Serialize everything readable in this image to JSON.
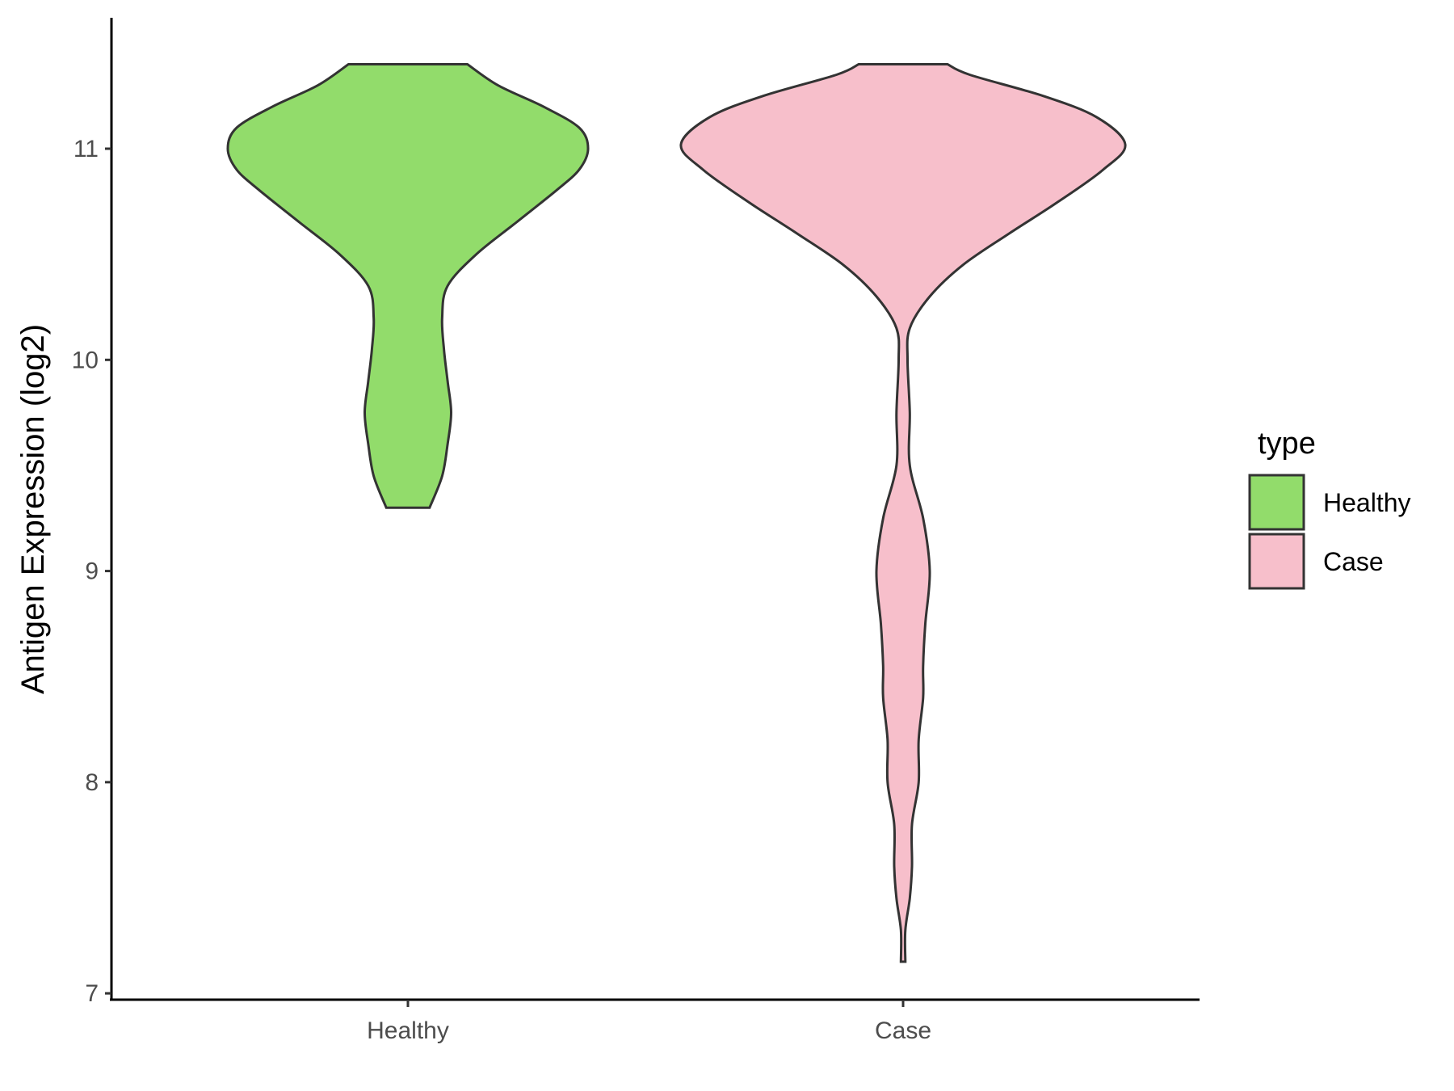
{
  "chart_data": {
    "type": "violin",
    "ylabel": "Antigen Expression (log2)",
    "xlabel": "",
    "ylim": [
      6.97,
      11.62
    ],
    "yticks": [
      7,
      8,
      9,
      10,
      11
    ],
    "categories": [
      "Healthy",
      "Case"
    ],
    "legend": {
      "title": "type",
      "placement": "right",
      "entries": [
        "Healthy",
        "Case"
      ]
    },
    "grid": false,
    "series": [
      {
        "name": "Healthy",
        "color": "#92dc6b",
        "min": 9.3,
        "max": 11.4,
        "density_profile": [
          [
            9.3,
            0.12
          ],
          [
            9.45,
            0.19
          ],
          [
            9.6,
            0.22
          ],
          [
            9.75,
            0.24
          ],
          [
            9.9,
            0.22
          ],
          [
            10.05,
            0.2
          ],
          [
            10.2,
            0.19
          ],
          [
            10.35,
            0.22
          ],
          [
            10.5,
            0.38
          ],
          [
            10.65,
            0.6
          ],
          [
            10.8,
            0.82
          ],
          [
            10.9,
            0.95
          ],
          [
            11.0,
            1.0
          ],
          [
            11.1,
            0.95
          ],
          [
            11.2,
            0.75
          ],
          [
            11.3,
            0.5
          ],
          [
            11.4,
            0.33
          ]
        ]
      },
      {
        "name": "Case",
        "color": "#f7bfcb",
        "min": 7.15,
        "max": 11.4,
        "density_profile": [
          [
            7.15,
            0.01
          ],
          [
            7.3,
            0.01
          ],
          [
            7.45,
            0.03
          ],
          [
            7.6,
            0.04
          ],
          [
            7.8,
            0.04
          ],
          [
            8.0,
            0.07
          ],
          [
            8.2,
            0.07
          ],
          [
            8.4,
            0.09
          ],
          [
            8.55,
            0.09
          ],
          [
            8.75,
            0.1
          ],
          [
            9.0,
            0.12
          ],
          [
            9.25,
            0.09
          ],
          [
            9.5,
            0.03
          ],
          [
            9.75,
            0.03
          ],
          [
            10.0,
            0.02
          ],
          [
            10.15,
            0.03
          ],
          [
            10.3,
            0.12
          ],
          [
            10.45,
            0.27
          ],
          [
            10.6,
            0.48
          ],
          [
            10.75,
            0.7
          ],
          [
            10.9,
            0.9
          ],
          [
            11.02,
            1.0
          ],
          [
            11.15,
            0.87
          ],
          [
            11.25,
            0.63
          ],
          [
            11.35,
            0.3
          ],
          [
            11.4,
            0.2
          ]
        ]
      }
    ]
  }
}
